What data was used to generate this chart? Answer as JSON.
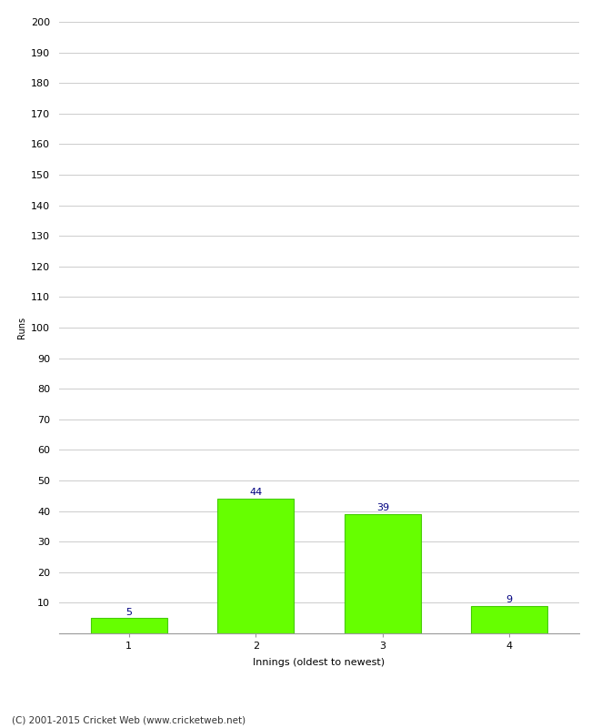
{
  "categories": [
    "1",
    "2",
    "3",
    "4"
  ],
  "values": [
    5,
    44,
    39,
    9
  ],
  "bar_color": "#66ff00",
  "bar_edge_color": "#44cc00",
  "label_color": "#000080",
  "ylabel": "Runs",
  "xlabel": "Innings (oldest to newest)",
  "ylim": [
    0,
    200
  ],
  "yticks": [
    0,
    10,
    20,
    30,
    40,
    50,
    60,
    70,
    80,
    90,
    100,
    110,
    120,
    130,
    140,
    150,
    160,
    170,
    180,
    190,
    200
  ],
  "footer": "(C) 2001-2015 Cricket Web (www.cricketweb.net)",
  "label_fontsize": 8,
  "axis_fontsize": 8,
  "ylabel_fontsize": 7,
  "footer_fontsize": 7.5,
  "background_color": "#ffffff",
  "grid_color": "#cccccc",
  "bar_width": 0.6
}
